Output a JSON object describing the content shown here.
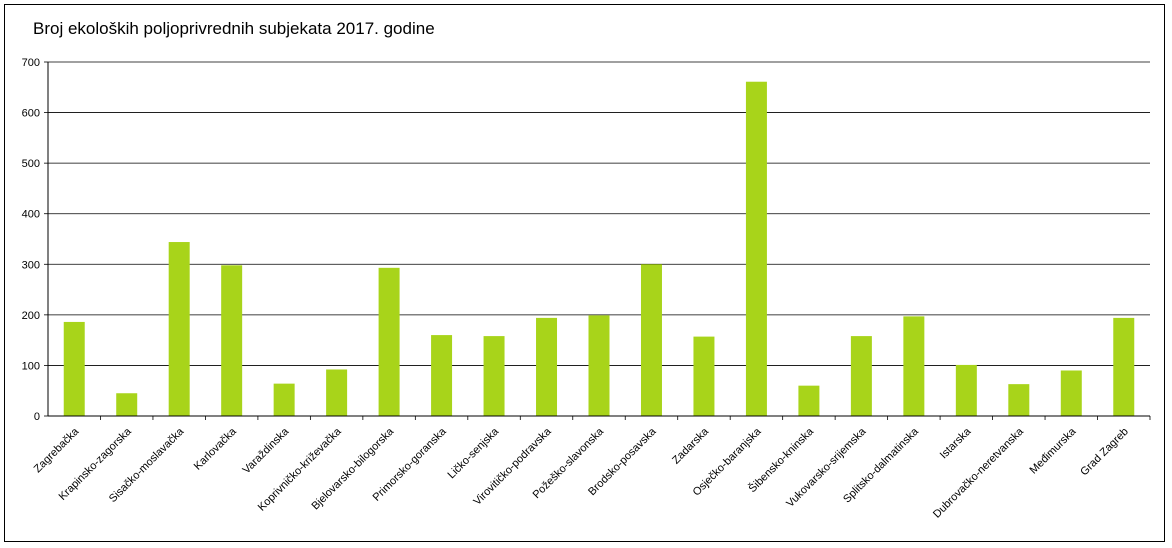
{
  "chart_data": {
    "type": "bar",
    "title": "Broj ekoloških poljoprivrednih subjekata 2017. godine",
    "xlabel": "",
    "ylabel": "",
    "ylim": [
      0,
      700
    ],
    "yticks": [
      0,
      100,
      200,
      300,
      400,
      500,
      600,
      700
    ],
    "grid": true,
    "legend": "none",
    "bar_color": "#a8d41a",
    "categories": [
      "Zagrebačka",
      "Krapinsko-zagorska",
      "Sisačko-moslavačka",
      "Karlovačka",
      "Varaždinska",
      "Koprivničko-križevačka",
      "Bjelovarsko-bilogorska",
      "Primorsko-goranska",
      "Ličko-senjska",
      "Virovitičko-podravska",
      "Požeško-slavonska",
      "Brodsko-posavska",
      "Zadarska",
      "Osječko-baranjska",
      "Šibensko-kninska",
      "Vukovarsko-srijemska",
      "Splitsko-dalmatinska",
      "Istarska",
      "Dubrovačko-neretvanska",
      "Međimurska",
      "Grad Zagreb"
    ],
    "values": [
      186,
      45,
      344,
      298,
      64,
      92,
      293,
      160,
      158,
      194,
      199,
      300,
      157,
      661,
      60,
      158,
      197,
      101,
      63,
      90,
      194
    ]
  }
}
